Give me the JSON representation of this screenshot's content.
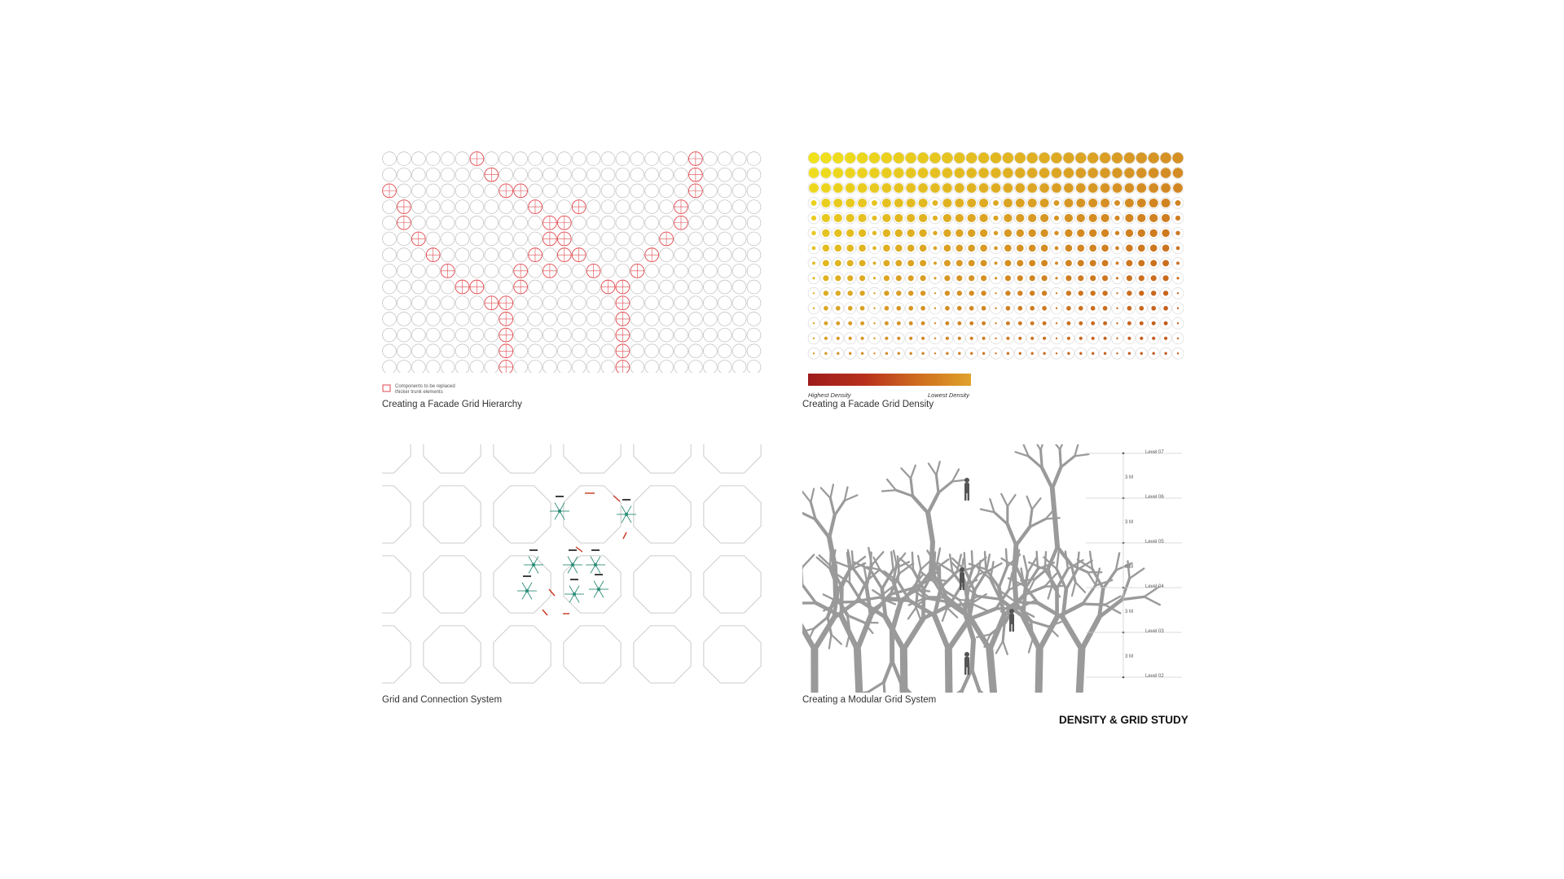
{
  "panels": {
    "hierarchy": {
      "caption": "Creating a Facade Grid Hierarchy",
      "legend_line_1": "Components to be replaced",
      "legend_line_2": "thicker trunk elements"
    },
    "density": {
      "caption": "Creating a Facade Grid Density",
      "legend_high": "Highest Density",
      "legend_low": "Lowest Density"
    },
    "connection": {
      "caption": "Grid and Connection System"
    },
    "modular": {
      "caption": "Creating a Modular Grid System",
      "levels": [
        "Level 07",
        "Level 06",
        "Level 05",
        "Level 04",
        "Level 03",
        "Level 02"
      ],
      "dimensions": [
        "3 M",
        "3 M",
        "3 M",
        "3 M",
        "3 M"
      ]
    }
  },
  "page_title": "DENSITY & GRID STUDY",
  "colors": {
    "grid_line": "#bdbdbd",
    "hierarchy_red": "#e0474c",
    "density_high": "#9c1b1b",
    "density_mid": "#d0711f",
    "density_low": "#f1e21c",
    "tree_gray": "#9a9a9a",
    "connector_green": "#2f8f7a",
    "connector_red": "#c8361d"
  },
  "icons": [
    "legend-square-icon",
    "person-silhouette-icon"
  ]
}
